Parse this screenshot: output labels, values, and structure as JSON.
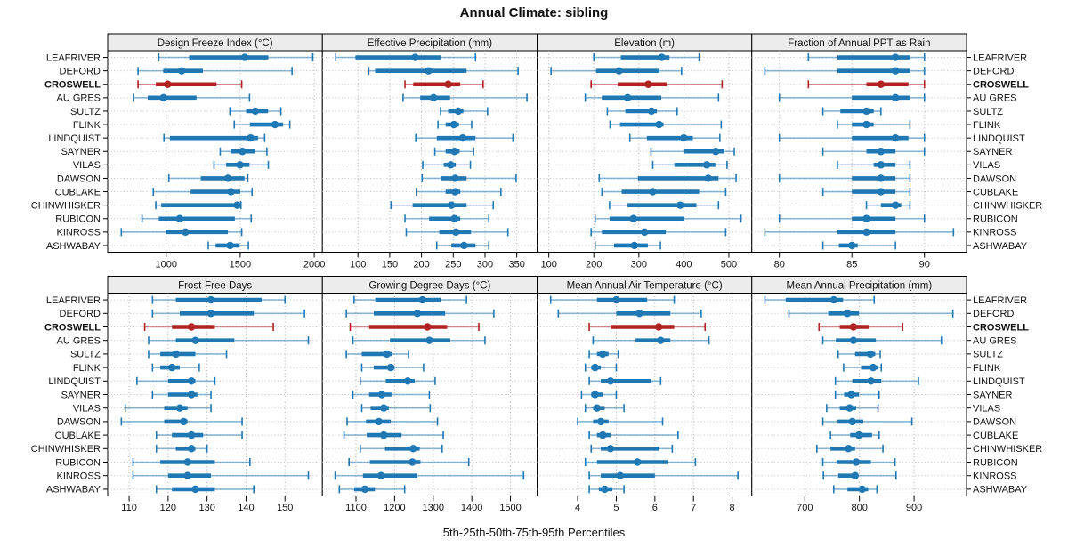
{
  "chart_data": {
    "type": "dotplot-trellis",
    "title": "Annual Climate: sibling",
    "xlabel": "5th-25th-50th-75th-95th Percentiles",
    "statistics": [
      "p5",
      "p25",
      "p50",
      "p75",
      "p95"
    ],
    "legend_position": "bottom",
    "grid": "dotted",
    "highlight_site": "CROSWELL",
    "colors": {
      "series_normal": "#1F78B4",
      "series_highlight": "#B22222",
      "strip_bg": "#ECECEC",
      "panel_border": "#000000",
      "gridline": "#ABABAB",
      "rowline": "#BDBDBD",
      "text": "#111111"
    },
    "sites": [
      "LEAFRIVER",
      "DEFORD",
      "CROSWELL",
      "AU GRES",
      "SULTZ",
      "FLINK",
      "LINDQUIST",
      "SAYNER",
      "VILAS",
      "DAWSON",
      "CUBLAKE",
      "CHINWHISKER",
      "RUBICON",
      "KINROSS",
      "ASHWABAY"
    ],
    "panels": [
      {
        "title": "Design Freeze Index (°C)",
        "row": 0,
        "col": 0,
        "xlim": [
          605,
          2055
        ],
        "ticks": [
          1000,
          1500,
          2000
        ],
        "values": [
          [
            950,
            1155,
            1530,
            1690,
            1990
          ],
          [
            810,
            980,
            1105,
            1248,
            1850
          ],
          [
            810,
            930,
            1010,
            1340,
            1510
          ],
          [
            780,
            875,
            982,
            1205,
            1563
          ],
          [
            1430,
            1540,
            1602,
            1688,
            1775
          ],
          [
            1460,
            1565,
            1735,
            1790,
            1835
          ],
          [
            985,
            1025,
            1570,
            1620,
            1665
          ],
          [
            1365,
            1435,
            1515,
            1600,
            1680
          ],
          [
            1323,
            1405,
            1498,
            1563,
            1690
          ],
          [
            1018,
            1234,
            1417,
            1529,
            1551
          ],
          [
            913,
            1165,
            1437,
            1500,
            1580
          ],
          [
            930,
            966,
            1480,
            1497,
            1505
          ],
          [
            837,
            950,
            1091,
            1464,
            1574
          ],
          [
            697,
            998,
            1130,
            1417,
            1510
          ],
          [
            1284,
            1334,
            1432,
            1496,
            1555
          ]
        ]
      },
      {
        "title": "Effective Precipitation (mm)",
        "row": 0,
        "col": 1,
        "xlim": [
          44,
          382
        ],
        "ticks": [
          100,
          150,
          200,
          250,
          300,
          350
        ],
        "values": [
          [
            65,
            96,
            190,
            231,
            285
          ],
          [
            117,
            127,
            211,
            271,
            352
          ],
          [
            174,
            187,
            242,
            261,
            297
          ],
          [
            171,
            198,
            219,
            245,
            366
          ],
          [
            230,
            242,
            258,
            266,
            304
          ],
          [
            226,
            238,
            251,
            259,
            279
          ],
          [
            191,
            224,
            265,
            285,
            344
          ],
          [
            221,
            238,
            252,
            260,
            282
          ],
          [
            202,
            235,
            246,
            254,
            277
          ],
          [
            201,
            231,
            253,
            271,
            349
          ],
          [
            192,
            238,
            253,
            261,
            325
          ],
          [
            152,
            186,
            247,
            271,
            313
          ],
          [
            174,
            212,
            252,
            261,
            306
          ],
          [
            176,
            228,
            254,
            278,
            336
          ],
          [
            224,
            247,
            267,
            285,
            306
          ]
        ]
      },
      {
        "title": "Elevation (m)",
        "row": 0,
        "col": 2,
        "xlim": [
          74,
          551
        ],
        "ticks": [
          100,
          200,
          300,
          400,
          500
        ],
        "values": [
          [
            200,
            260,
            351,
            368,
            434
          ],
          [
            105,
            205,
            256,
            346,
            395
          ],
          [
            194,
            253,
            321,
            363,
            485
          ],
          [
            181,
            218,
            275,
            350,
            477
          ],
          [
            230,
            270,
            328,
            340,
            385
          ],
          [
            236,
            258,
            345,
            355,
            483
          ],
          [
            280,
            318,
            400,
            420,
            480
          ],
          [
            327,
            399,
            471,
            490,
            512
          ],
          [
            331,
            379,
            451,
            470,
            496
          ],
          [
            212,
            298,
            454,
            477,
            516
          ],
          [
            218,
            262,
            331,
            434,
            493
          ],
          [
            235,
            274,
            392,
            428,
            477
          ],
          [
            203,
            235,
            288,
            400,
            527
          ],
          [
            194,
            218,
            313,
            360,
            493
          ],
          [
            203,
            245,
            290,
            320,
            348
          ]
        ]
      },
      {
        "title": "Fraction of Annual PPT as Rain",
        "row": 0,
        "col": 3,
        "xlim": [
          78.1,
          92.9
        ],
        "ticks": [
          80,
          85,
          90
        ],
        "values": [
          [
            82,
            84,
            88,
            89,
            90
          ],
          [
            79,
            84,
            88,
            89,
            90
          ],
          [
            82,
            86,
            87,
            88.9,
            90
          ],
          [
            80,
            85,
            88,
            89,
            90
          ],
          [
            83,
            84.2,
            86,
            86.5,
            87
          ],
          [
            84,
            85,
            86,
            86.5,
            89
          ],
          [
            80,
            85,
            88,
            88.9,
            90
          ],
          [
            83,
            86,
            87,
            88,
            90
          ],
          [
            84,
            86.5,
            87,
            88,
            89
          ],
          [
            80,
            85,
            87,
            88,
            89
          ],
          [
            83,
            85,
            87,
            88,
            89
          ],
          [
            86,
            87,
            88,
            88.4,
            89
          ],
          [
            80,
            85,
            86,
            88,
            90
          ],
          [
            79,
            84,
            86,
            88,
            92
          ],
          [
            83,
            84.1,
            85,
            85.4,
            88
          ]
        ]
      },
      {
        "title": "Frost-Free Days",
        "row": 1,
        "col": 0,
        "xlim": [
          104.5,
          159.6
        ],
        "ticks": [
          110,
          120,
          130,
          140,
          150
        ],
        "values": [
          [
            116,
            122,
            131,
            144,
            150
          ],
          [
            116,
            123,
            131,
            142,
            155
          ],
          [
            114,
            121,
            126,
            132,
            147
          ],
          [
            115,
            122,
            127,
            137,
            156
          ],
          [
            115,
            118,
            122,
            127,
            135
          ],
          [
            116,
            118,
            121,
            123,
            128
          ],
          [
            112,
            120,
            126,
            127,
            132
          ],
          [
            116,
            120,
            126,
            127.5,
            131
          ],
          [
            109,
            119,
            123,
            125,
            131
          ],
          [
            108,
            119,
            124,
            125,
            139
          ],
          [
            117,
            121,
            126,
            129,
            139
          ],
          [
            117,
            122,
            126,
            127,
            130
          ],
          [
            111,
            118,
            125,
            132,
            141
          ],
          [
            111,
            120,
            125,
            131,
            156
          ],
          [
            117,
            121,
            127,
            132,
            142
          ]
        ]
      },
      {
        "title": "Growing Degree Days (°C)",
        "row": 1,
        "col": 1,
        "xlim": [
          1013,
          1569
        ],
        "ticks": [
          1100,
          1200,
          1300,
          1400,
          1500
        ],
        "values": [
          [
            1095,
            1150,
            1272,
            1320,
            1386
          ],
          [
            1075,
            1146,
            1259,
            1331,
            1457
          ],
          [
            1085,
            1134,
            1285,
            1336,
            1418
          ],
          [
            1092,
            1188,
            1290,
            1344,
            1434
          ],
          [
            1075,
            1115,
            1180,
            1194,
            1236
          ],
          [
            1115,
            1146,
            1190,
            1200,
            1275
          ],
          [
            1111,
            1177,
            1234,
            1252,
            1305
          ],
          [
            1092,
            1134,
            1167,
            1192,
            1290
          ],
          [
            1115,
            1138,
            1172,
            1185,
            1292
          ],
          [
            1077,
            1126,
            1159,
            1190,
            1311
          ],
          [
            1069,
            1128,
            1172,
            1218,
            1326
          ],
          [
            1111,
            1175,
            1248,
            1265,
            1323
          ],
          [
            1082,
            1136,
            1246,
            1267,
            1392
          ],
          [
            1046,
            1118,
            1165,
            1259,
            1534
          ],
          [
            1057,
            1095,
            1123,
            1149,
            1226
          ]
        ]
      },
      {
        "title": "Mean Annual Air Temperature (°C)",
        "row": 1,
        "col": 2,
        "xlim": [
          2.95,
          8.51
        ],
        "ticks": [
          4,
          5,
          6,
          7,
          8
        ],
        "values": [
          [
            3.3,
            4.5,
            5.0,
            5.8,
            6.5
          ],
          [
            3.5,
            5.0,
            5.6,
            6.4,
            7.2
          ],
          [
            4.3,
            4.85,
            6.1,
            6.5,
            7.3
          ],
          [
            4.4,
            5.5,
            6.15,
            6.4,
            7.4
          ],
          [
            4.3,
            4.5,
            4.65,
            4.8,
            5.05
          ],
          [
            4.2,
            4.35,
            4.45,
            4.6,
            5.0
          ],
          [
            4.3,
            4.6,
            4.85,
            5.9,
            6.15
          ],
          [
            4.1,
            4.35,
            4.45,
            4.65,
            5.0
          ],
          [
            4.2,
            4.4,
            4.5,
            4.7,
            5.2
          ],
          [
            4.0,
            4.4,
            4.6,
            4.8,
            6.2
          ],
          [
            4.3,
            4.5,
            4.65,
            4.85,
            6.6
          ],
          [
            4.35,
            4.6,
            4.85,
            6.1,
            6.45
          ],
          [
            4.2,
            4.5,
            5.55,
            6.35,
            7.05
          ],
          [
            4.3,
            4.6,
            5.1,
            6.0,
            8.15
          ],
          [
            4.3,
            4.55,
            4.7,
            4.9,
            5.2
          ]
        ]
      },
      {
        "title": "Mean Annual Precipitation (mm)",
        "row": 1,
        "col": 3,
        "xlim": [
          603,
          996
        ],
        "ticks": [
          700,
          800,
          900
        ],
        "values": [
          [
            627,
            665,
            753,
            770,
            827
          ],
          [
            671,
            743,
            778,
            799,
            971
          ],
          [
            726,
            764,
            789,
            817,
            879
          ],
          [
            733,
            757,
            789,
            830,
            950
          ],
          [
            761,
            792,
            820,
            829,
            838
          ],
          [
            771,
            803,
            825,
            834,
            840
          ],
          [
            756,
            787,
            821,
            840,
            908
          ],
          [
            756,
            772,
            785,
            799,
            836
          ],
          [
            740,
            764,
            782,
            794,
            834
          ],
          [
            733,
            760,
            787,
            807,
            896
          ],
          [
            747,
            783,
            799,
            823,
            836
          ],
          [
            722,
            747,
            780,
            792,
            843
          ],
          [
            733,
            758,
            794,
            821,
            865
          ],
          [
            734,
            761,
            792,
            798,
            867
          ],
          [
            753,
            778,
            805,
            816,
            832
          ]
        ]
      }
    ]
  }
}
